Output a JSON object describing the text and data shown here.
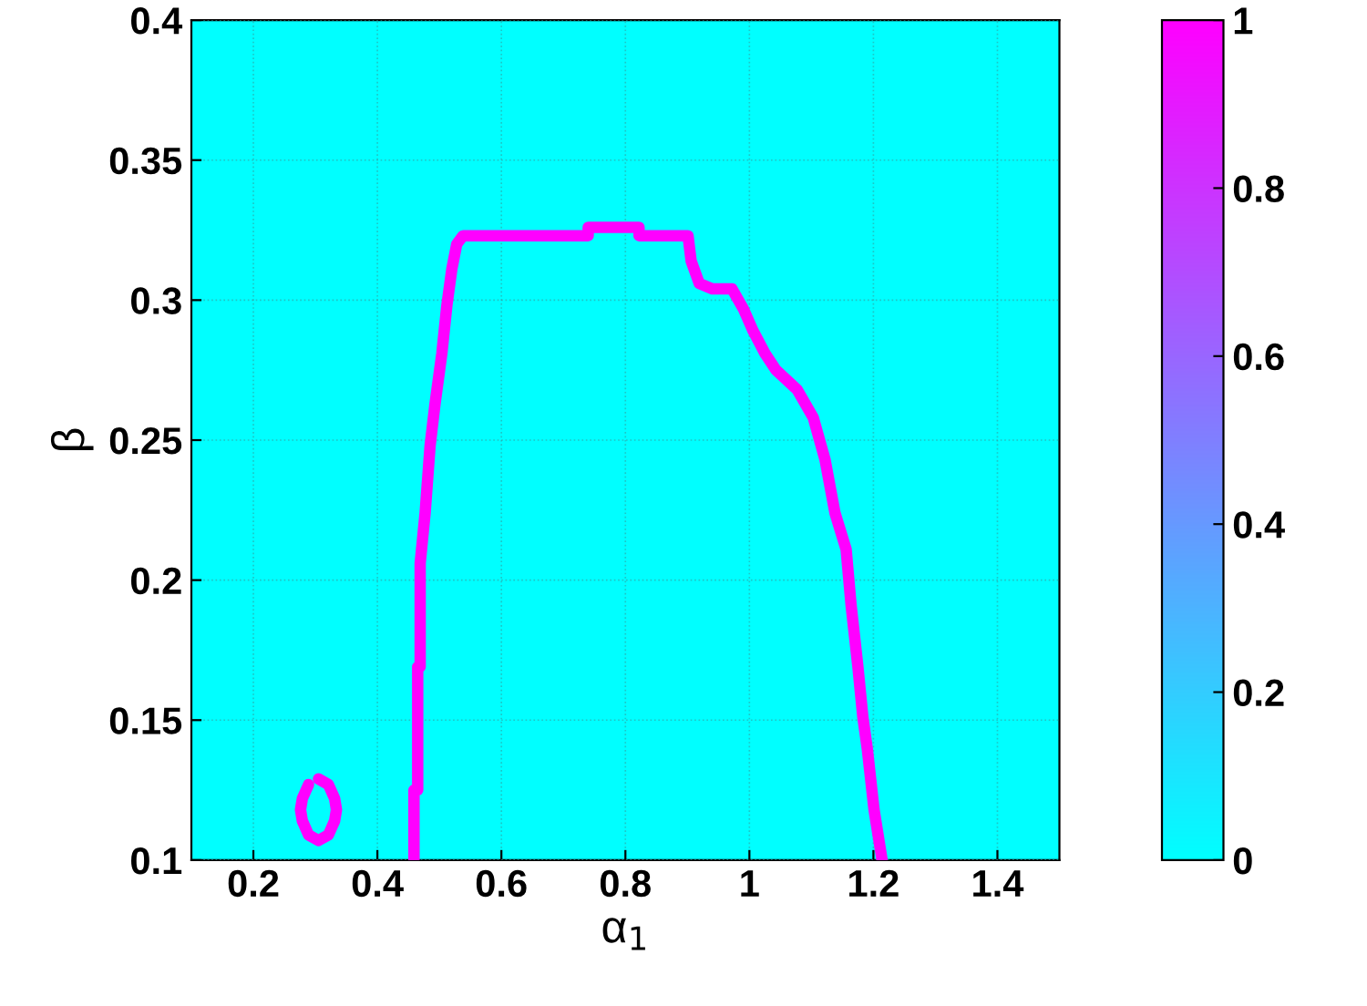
{
  "chart_data": {
    "type": "line",
    "xlabel": "α$_{1}$",
    "ylabel": "β",
    "xlim": [
      0.1,
      1.5
    ],
    "ylim": [
      0.1,
      0.4
    ],
    "xticks": [
      0.2,
      0.4,
      0.6,
      0.8,
      1,
      1.2,
      1.4
    ],
    "yticks": [
      0.1,
      0.15,
      0.2,
      0.25,
      0.3,
      0.35,
      0.4
    ],
    "clim": [
      0,
      1
    ],
    "cticks": [
      0,
      0.2,
      0.4,
      0.6,
      0.8,
      1
    ],
    "grid": true,
    "marker": "none",
    "line_style": "solid",
    "series": [
      {
        "color": "#ff00ff",
        "x": [
          0.459,
          0.459,
          0.465,
          0.465,
          0.469,
          0.469,
          0.477,
          0.485,
          0.493,
          0.504,
          0.512,
          0.52,
          0.528,
          0.538,
          0.74,
          0.74,
          0.822,
          0.822,
          0.901,
          0.906,
          0.919,
          0.94,
          0.972,
          0.99,
          1.006,
          1.025,
          1.043,
          1.077,
          1.103,
          1.122,
          1.138,
          1.156,
          1.164,
          1.175,
          1.183,
          1.19,
          1.201,
          1.214
        ],
        "values": [
          0.1,
          0.125,
          0.125,
          0.169,
          0.169,
          0.206,
          0.224,
          0.248,
          0.263,
          0.281,
          0.298,
          0.311,
          0.32,
          0.323,
          0.323,
          0.326,
          0.326,
          0.323,
          0.323,
          0.314,
          0.306,
          0.304,
          0.304,
          0.297,
          0.289,
          0.281,
          0.275,
          0.268,
          0.258,
          0.243,
          0.224,
          0.211,
          0.191,
          0.169,
          0.151,
          0.14,
          0.118,
          0.1
        ]
      },
      {
        "color": "#ff00ff",
        "x": [
          0.305,
          0.321,
          0.331,
          0.334,
          0.331,
          0.321,
          0.305,
          0.289,
          0.279,
          0.276,
          0.279,
          0.289
        ],
        "values": [
          0.129,
          0.127,
          0.122,
          0.118,
          0.114,
          0.109,
          0.107,
          0.109,
          0.114,
          0.118,
          0.122,
          0.127
        ]
      }
    ]
  }
}
